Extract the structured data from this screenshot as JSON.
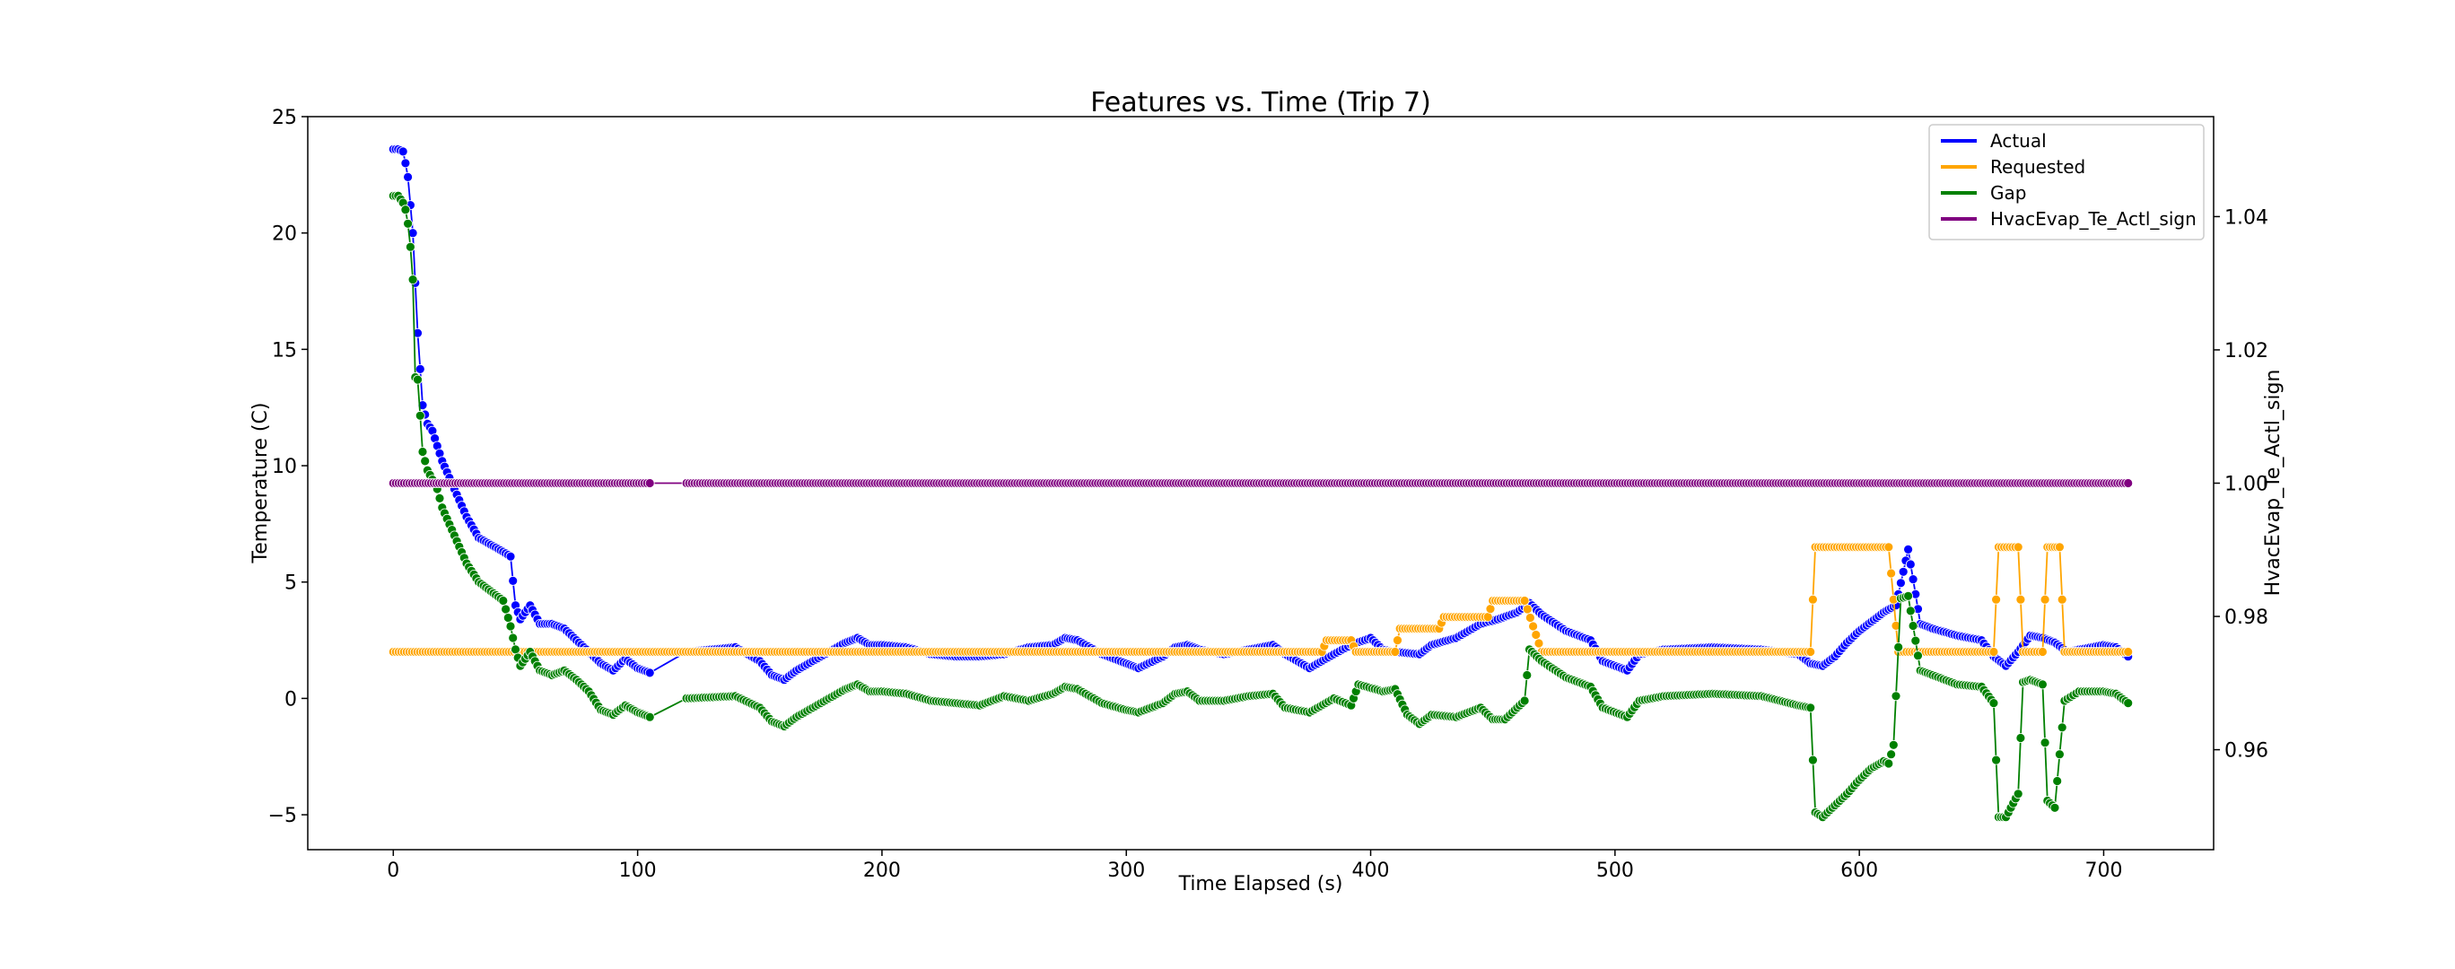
{
  "chart_data": {
    "type": "line",
    "title": "Features vs. Time (Trip 7)",
    "xlabel": "Time Elapsed (s)",
    "ylabel": "Temperature (C)",
    "ylabel_right": "HvacEvap_Te_Actl_sign",
    "xlim": [
      -35,
      745
    ],
    "ylim": [
      -6.5,
      25
    ],
    "ylim_right": [
      0.945,
      1.055
    ],
    "x_ticks": [
      0,
      100,
      200,
      300,
      400,
      500,
      600,
      700
    ],
    "y_ticks": [
      -5,
      0,
      5,
      10,
      15,
      20,
      25
    ],
    "y_ticks_right": [
      0.96,
      0.98,
      1.0,
      1.02,
      1.04
    ],
    "y_tick_labels_right": [
      "0.96",
      "0.98",
      "1.00",
      "1.02",
      "1.04"
    ],
    "grid": false,
    "legend_position": "top-right",
    "series": [
      {
        "name": "Actual",
        "axis": "left",
        "color": "#0000ff",
        "points": [
          [
            0,
            23.6
          ],
          [
            2,
            23.6
          ],
          [
            4,
            23.5
          ],
          [
            5,
            23.0
          ],
          [
            6,
            22.4
          ],
          [
            8,
            20.0
          ],
          [
            10,
            15.7
          ],
          [
            12,
            12.6
          ],
          [
            14,
            11.8
          ],
          [
            16,
            11.5
          ],
          [
            20,
            10.2
          ],
          [
            25,
            9.0
          ],
          [
            30,
            7.8
          ],
          [
            35,
            6.9
          ],
          [
            40,
            6.6
          ],
          [
            45,
            6.3
          ],
          [
            48,
            6.1
          ],
          [
            50,
            4.0
          ],
          [
            52,
            3.4
          ],
          [
            56,
            4.0
          ],
          [
            60,
            3.2
          ],
          [
            65,
            3.2
          ],
          [
            70,
            3.0
          ],
          [
            75,
            2.5
          ],
          [
            80,
            2.0
          ],
          [
            85,
            1.5
          ],
          [
            90,
            1.2
          ],
          [
            95,
            1.7
          ],
          [
            100,
            1.3
          ],
          [
            105,
            1.1
          ],
          [
            120,
            2.0
          ],
          [
            140,
            2.2
          ],
          [
            150,
            1.6
          ],
          [
            155,
            1.0
          ],
          [
            160,
            0.8
          ],
          [
            165,
            1.2
          ],
          [
            175,
            1.8
          ],
          [
            185,
            2.4
          ],
          [
            190,
            2.6
          ],
          [
            195,
            2.3
          ],
          [
            200,
            2.3
          ],
          [
            210,
            2.2
          ],
          [
            220,
            1.9
          ],
          [
            230,
            1.8
          ],
          [
            240,
            1.8
          ],
          [
            250,
            1.9
          ],
          [
            260,
            2.2
          ],
          [
            270,
            2.3
          ],
          [
            275,
            2.6
          ],
          [
            280,
            2.5
          ],
          [
            290,
            1.9
          ],
          [
            300,
            1.5
          ],
          [
            305,
            1.3
          ],
          [
            315,
            1.8
          ],
          [
            320,
            2.2
          ],
          [
            325,
            2.3
          ],
          [
            330,
            2.1
          ],
          [
            340,
            1.9
          ],
          [
            350,
            2.1
          ],
          [
            360,
            2.3
          ],
          [
            365,
            1.9
          ],
          [
            375,
            1.3
          ],
          [
            385,
            1.9
          ],
          [
            392,
            2.3
          ],
          [
            400,
            2.6
          ],
          [
            405,
            2.1
          ],
          [
            410,
            2.0
          ],
          [
            420,
            1.9
          ],
          [
            425,
            2.3
          ],
          [
            435,
            2.6
          ],
          [
            445,
            3.2
          ],
          [
            452,
            3.4
          ],
          [
            460,
            3.7
          ],
          [
            465,
            4.1
          ],
          [
            470,
            3.6
          ],
          [
            480,
            2.9
          ],
          [
            490,
            2.5
          ],
          [
            495,
            1.6
          ],
          [
            505,
            1.2
          ],
          [
            510,
            1.9
          ],
          [
            520,
            2.1
          ],
          [
            540,
            2.2
          ],
          [
            560,
            2.1
          ],
          [
            575,
            1.9
          ],
          [
            580,
            1.5
          ],
          [
            585,
            1.4
          ],
          [
            590,
            1.8
          ],
          [
            595,
            2.4
          ],
          [
            600,
            2.9
          ],
          [
            605,
            3.3
          ],
          [
            610,
            3.7
          ],
          [
            615,
            4.0
          ],
          [
            620,
            6.4
          ],
          [
            625,
            3.2
          ],
          [
            630,
            3.0
          ],
          [
            640,
            2.7
          ],
          [
            650,
            2.5
          ],
          [
            655,
            1.8
          ],
          [
            660,
            1.4
          ],
          [
            665,
            2.0
          ],
          [
            670,
            2.7
          ],
          [
            675,
            2.6
          ],
          [
            680,
            2.4
          ],
          [
            685,
            2.0
          ],
          [
            690,
            2.1
          ],
          [
            700,
            2.3
          ],
          [
            705,
            2.2
          ],
          [
            710,
            1.8
          ]
        ]
      },
      {
        "name": "Requested",
        "axis": "left",
        "color": "#ffa500",
        "points": [
          [
            0,
            2.0
          ],
          [
            100,
            2.0
          ],
          [
            200,
            2.0
          ],
          [
            300,
            2.0
          ],
          [
            380,
            2.0
          ],
          [
            382,
            2.5
          ],
          [
            392,
            2.5
          ],
          [
            394,
            2.0
          ],
          [
            410,
            2.0
          ],
          [
            412,
            3.0
          ],
          [
            428,
            3.0
          ],
          [
            430,
            3.5
          ],
          [
            448,
            3.5
          ],
          [
            450,
            4.2
          ],
          [
            463,
            4.2
          ],
          [
            470,
            2.0
          ],
          [
            580,
            2.0
          ],
          [
            582,
            6.5
          ],
          [
            612,
            6.5
          ],
          [
            616,
            2.0
          ],
          [
            655,
            2.0
          ],
          [
            657,
            6.5
          ],
          [
            665,
            6.5
          ],
          [
            667,
            2.0
          ],
          [
            675,
            2.0
          ],
          [
            677,
            6.5
          ],
          [
            682,
            6.5
          ],
          [
            684,
            2.0
          ],
          [
            710,
            2.0
          ]
        ]
      },
      {
        "name": "Gap",
        "axis": "left",
        "color": "#008000",
        "points": [
          [
            0,
            21.6
          ],
          [
            2,
            21.6
          ],
          [
            4,
            21.3
          ],
          [
            5,
            21.0
          ],
          [
            6,
            20.4
          ],
          [
            7,
            19.4
          ],
          [
            8,
            18.0
          ],
          [
            9,
            13.8
          ],
          [
            10,
            13.7
          ],
          [
            12,
            10.6
          ],
          [
            14,
            9.8
          ],
          [
            18,
            9.0
          ],
          [
            20,
            8.2
          ],
          [
            25,
            7.0
          ],
          [
            30,
            5.8
          ],
          [
            35,
            5.0
          ],
          [
            40,
            4.6
          ],
          [
            45,
            4.2
          ],
          [
            48,
            3.1
          ],
          [
            50,
            2.1
          ],
          [
            52,
            1.4
          ],
          [
            56,
            2.0
          ],
          [
            60,
            1.2
          ],
          [
            65,
            1.0
          ],
          [
            70,
            1.2
          ],
          [
            75,
            0.8
          ],
          [
            80,
            0.3
          ],
          [
            85,
            -0.5
          ],
          [
            90,
            -0.7
          ],
          [
            95,
            -0.3
          ],
          [
            100,
            -0.6
          ],
          [
            105,
            -0.8
          ],
          [
            120,
            0.0
          ],
          [
            140,
            0.1
          ],
          [
            150,
            -0.4
          ],
          [
            155,
            -1.0
          ],
          [
            160,
            -1.2
          ],
          [
            165,
            -0.8
          ],
          [
            175,
            -0.2
          ],
          [
            185,
            0.4
          ],
          [
            190,
            0.6
          ],
          [
            195,
            0.3
          ],
          [
            200,
            0.3
          ],
          [
            210,
            0.2
          ],
          [
            220,
            -0.1
          ],
          [
            230,
            -0.2
          ],
          [
            240,
            -0.3
          ],
          [
            250,
            0.1
          ],
          [
            260,
            -0.1
          ],
          [
            270,
            0.2
          ],
          [
            275,
            0.5
          ],
          [
            280,
            0.4
          ],
          [
            290,
            -0.2
          ],
          [
            300,
            -0.5
          ],
          [
            305,
            -0.6
          ],
          [
            315,
            -0.2
          ],
          [
            320,
            0.2
          ],
          [
            325,
            0.3
          ],
          [
            330,
            -0.1
          ],
          [
            340,
            -0.1
          ],
          [
            350,
            0.1
          ],
          [
            360,
            0.2
          ],
          [
            365,
            -0.4
          ],
          [
            375,
            -0.6
          ],
          [
            385,
            0.0
          ],
          [
            392,
            -0.3
          ],
          [
            395,
            0.6
          ],
          [
            405,
            0.3
          ],
          [
            410,
            0.4
          ],
          [
            415,
            -0.7
          ],
          [
            420,
            -1.1
          ],
          [
            425,
            -0.7
          ],
          [
            435,
            -0.8
          ],
          [
            445,
            -0.4
          ],
          [
            450,
            -0.9
          ],
          [
            455,
            -0.9
          ],
          [
            460,
            -0.4
          ],
          [
            463,
            -0.1
          ],
          [
            465,
            2.1
          ],
          [
            470,
            1.6
          ],
          [
            480,
            0.9
          ],
          [
            490,
            0.5
          ],
          [
            495,
            -0.4
          ],
          [
            505,
            -0.8
          ],
          [
            510,
            -0.1
          ],
          [
            520,
            0.1
          ],
          [
            540,
            0.2
          ],
          [
            560,
            0.1
          ],
          [
            575,
            -0.3
          ],
          [
            580,
            -0.4
          ],
          [
            582,
            -4.9
          ],
          [
            585,
            -5.1
          ],
          [
            590,
            -4.6
          ],
          [
            595,
            -4.1
          ],
          [
            600,
            -3.5
          ],
          [
            605,
            -3.0
          ],
          [
            610,
            -2.7
          ],
          [
            612,
            -2.8
          ],
          [
            614,
            -2.0
          ],
          [
            617,
            4.3
          ],
          [
            620,
            4.4
          ],
          [
            625,
            1.2
          ],
          [
            630,
            1.0
          ],
          [
            640,
            0.6
          ],
          [
            650,
            0.5
          ],
          [
            655,
            -0.2
          ],
          [
            657,
            -5.1
          ],
          [
            660,
            -5.1
          ],
          [
            665,
            -4.1
          ],
          [
            667,
            0.7
          ],
          [
            670,
            0.8
          ],
          [
            675,
            0.6
          ],
          [
            677,
            -4.4
          ],
          [
            680,
            -4.7
          ],
          [
            684,
            -0.1
          ],
          [
            690,
            0.3
          ],
          [
            700,
            0.3
          ],
          [
            705,
            0.2
          ],
          [
            710,
            -0.2
          ]
        ]
      },
      {
        "name": "HvacEvap_Te_Actl_sign",
        "axis": "right",
        "color": "#800080",
        "points": [
          [
            0,
            1.0
          ],
          [
            105,
            1.0
          ],
          [
            120,
            1.0
          ],
          [
            710,
            1.0
          ]
        ]
      }
    ]
  }
}
